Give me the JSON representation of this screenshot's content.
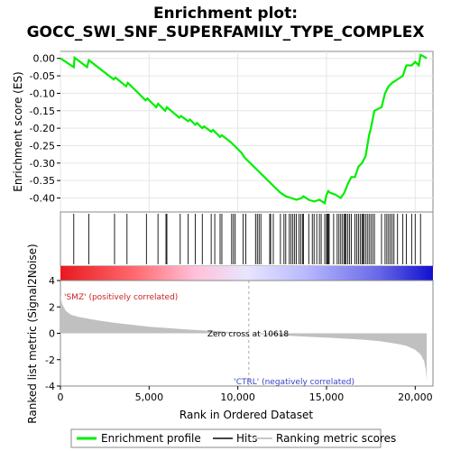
{
  "chart_data": {
    "type": "line",
    "title_line1": "Enrichment plot:",
    "title_line2": "GOCC_SWI_SNF_SUPERFAMILY_TYPE_COMPLEX",
    "ylabel_top": "Enrichment score (ES)",
    "ylabel_bottom": "Ranked list metric (Signal2Noise)",
    "xlabel": "Rank in Ordered Dataset",
    "xlim": [
      0,
      21000
    ],
    "es_ylim": [
      -0.44,
      0.02
    ],
    "metric_ylim": [
      -4,
      4
    ],
    "x_ticks": [
      0,
      5000,
      10000,
      15000,
      20000
    ],
    "x_tick_labels": [
      "0",
      "5,000",
      "10,000",
      "15,000",
      "20,000"
    ],
    "es_ticks": [
      0.0,
      -0.05,
      -0.1,
      -0.15,
      -0.2,
      -0.25,
      -0.3,
      -0.35,
      -0.4
    ],
    "es_tick_labels": [
      "0.00",
      "-0.05",
      "-0.10",
      "-0.15",
      "-0.20",
      "-0.25",
      "-0.30",
      "-0.35",
      "-0.40"
    ],
    "metric_ticks": [
      4,
      2,
      0,
      -2,
      -4
    ],
    "metric_tick_labels": [
      "4",
      "2",
      "0",
      "-2",
      "-4"
    ],
    "positive_label": "'SMZ' (positively correlated)",
    "negative_label": "'CTRL' (negatively correlated)",
    "zero_cross_label": "Zero cross at 10618",
    "zero_cross": 10618,
    "legend": [
      {
        "name": "Enrichment profile",
        "color": "#00ee00"
      },
      {
        "name": "Hits",
        "color": "#444444"
      },
      {
        "name": "Ranking metric scores",
        "color": "#c8c8c8"
      }
    ],
    "series": [
      {
        "name": "Enrichment profile",
        "color": "#00ee00",
        "x": [
          0,
          750,
          800,
          1500,
          1600,
          3000,
          3100,
          3700,
          3800,
          4800,
          4900,
          5400,
          5500,
          5900,
          6000,
          6700,
          6800,
          7200,
          7300,
          7600,
          7700,
          8000,
          8100,
          8500,
          8600,
          9000,
          9100,
          9600,
          9700,
          10200,
          10400,
          11000,
          11500,
          12000,
          12400,
          12700,
          13000,
          13300,
          13600,
          13700,
          14000,
          14300,
          14600,
          14900,
          15000,
          15100,
          15200,
          15500,
          15800,
          16000,
          16200,
          16400,
          16600,
          16800,
          17000,
          17200,
          17400,
          17500,
          17700,
          17900,
          18100,
          18300,
          18500,
          18700,
          19000,
          19300,
          19500,
          19800,
          20000,
          20200,
          20300,
          20500,
          20650
        ],
        "y": [
          0.0,
          -0.025,
          0.002,
          -0.025,
          -0.005,
          -0.06,
          -0.055,
          -0.08,
          -0.07,
          -0.12,
          -0.115,
          -0.14,
          -0.13,
          -0.15,
          -0.14,
          -0.17,
          -0.165,
          -0.18,
          -0.175,
          -0.19,
          -0.185,
          -0.2,
          -0.195,
          -0.21,
          -0.205,
          -0.225,
          -0.22,
          -0.24,
          -0.245,
          -0.27,
          -0.285,
          -0.315,
          -0.34,
          -0.365,
          -0.385,
          -0.395,
          -0.4,
          -0.405,
          -0.4,
          -0.395,
          -0.405,
          -0.41,
          -0.405,
          -0.415,
          -0.39,
          -0.38,
          -0.385,
          -0.39,
          -0.4,
          -0.385,
          -0.36,
          -0.34,
          -0.34,
          -0.31,
          -0.3,
          -0.28,
          -0.22,
          -0.2,
          -0.15,
          -0.145,
          -0.14,
          -0.1,
          -0.08,
          -0.07,
          -0.06,
          -0.05,
          -0.02,
          -0.02,
          -0.01,
          -0.02,
          0.01,
          0.005,
          0.0
        ]
      }
    ],
    "hits": [
      750,
      1600,
      3050,
      3750,
      4850,
      5500,
      5950,
      6000,
      6750,
      7200,
      7600,
      8000,
      8500,
      8700,
      9000,
      9100,
      9650,
      9750,
      9850,
      10300,
      10450,
      11000,
      11100,
      11200,
      11300,
      11800,
      11850,
      12000,
      12400,
      12600,
      12700,
      12900,
      13000,
      13100,
      13200,
      13300,
      13450,
      13550,
      13650,
      13700,
      14000,
      14200,
      14300,
      14450,
      14600,
      14700,
      14900,
      15000,
      15050,
      15100,
      15150,
      15400,
      15600,
      15700,
      15800,
      15900,
      16000,
      16050,
      16100,
      16200,
      16300,
      16400,
      16600,
      16700,
      16800,
      16900,
      17000,
      17050,
      17100,
      17200,
      17300,
      17400,
      17500,
      17600,
      17700,
      18100,
      18300,
      18400,
      18500,
      18600,
      18700,
      18800,
      19000,
      19300,
      19500,
      19800,
      20000,
      20300
    ],
    "metric_curve": {
      "x": [
        0,
        100,
        300,
        600,
        1000,
        2000,
        3000,
        4000,
        5000,
        6000,
        7000,
        8000,
        9000,
        10000,
        10618,
        11000,
        12000,
        13000,
        14000,
        15000,
        16000,
        17000,
        18000,
        19000,
        19500,
        20000,
        20300,
        20500,
        20600,
        20650
      ],
      "y": [
        2.8,
        2.2,
        1.7,
        1.4,
        1.25,
        1.0,
        0.8,
        0.65,
        0.5,
        0.4,
        0.3,
        0.22,
        0.15,
        0.05,
        0.0,
        -0.05,
        -0.12,
        -0.2,
        -0.27,
        -0.33,
        -0.4,
        -0.48,
        -0.6,
        -0.8,
        -0.95,
        -1.25,
        -1.6,
        -2.1,
        -2.8,
        -3.6
      ]
    }
  }
}
